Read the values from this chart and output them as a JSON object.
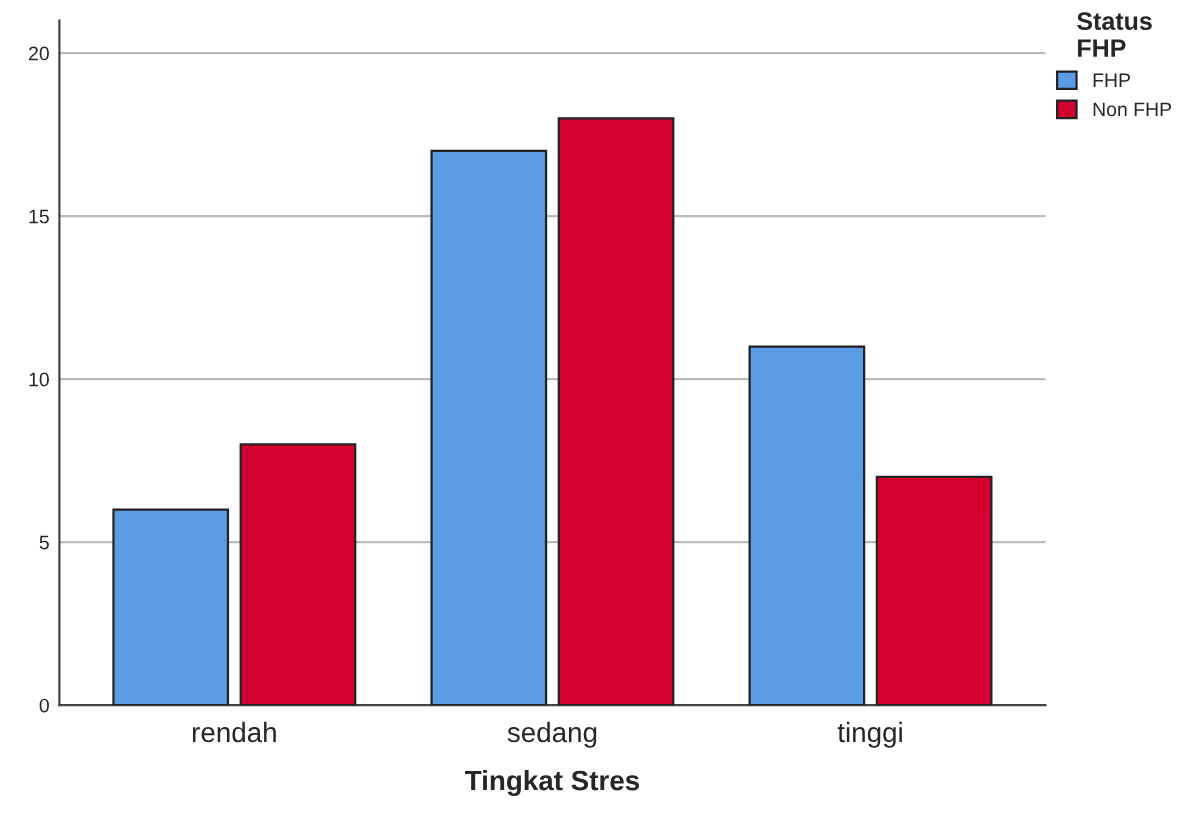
{
  "chart_data": {
    "type": "bar",
    "xlabel": "Tingkat Stres",
    "legend_title": "Status FHP",
    "categories": [
      "rendah",
      "sedang",
      "tinggi"
    ],
    "series": [
      {
        "name": "FHP",
        "color": "#5b9be3",
        "values": [
          6,
          17,
          11
        ]
      },
      {
        "name": "Non FHP",
        "color": "#d3002e",
        "values": [
          8,
          18,
          7
        ]
      }
    ],
    "ylim": [
      0,
      21
    ],
    "yticks": [
      0,
      5,
      10,
      15,
      20
    ],
    "grid": "y",
    "legend": "top right"
  }
}
